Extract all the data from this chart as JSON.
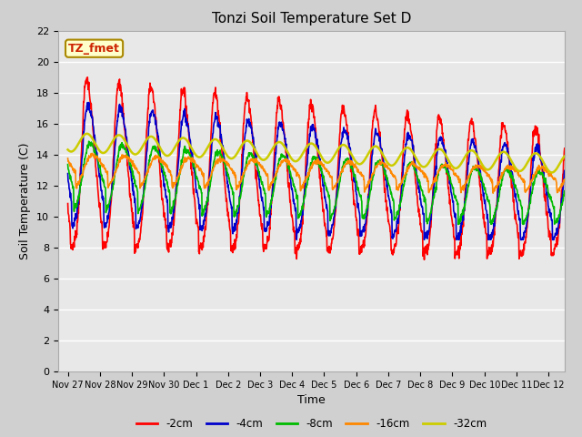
{
  "title": "Tonzi Soil Temperature Set D",
  "xlabel": "Time",
  "ylabel": "Soil Temperature (C)",
  "ylim": [
    0,
    22
  ],
  "yticks": [
    0,
    2,
    4,
    6,
    8,
    10,
    12,
    14,
    16,
    18,
    20,
    22
  ],
  "fig_facecolor": "#d0d0d0",
  "ax_facecolor": "#e8e8e8",
  "annotation_text": "TZ_fmet",
  "annotation_color": "#cc2200",
  "annotation_bg": "#ffffcc",
  "annotation_border": "#aa8800",
  "line_colors": {
    "-2cm": "#ff0000",
    "-4cm": "#0000cc",
    "-8cm": "#00bb00",
    "-16cm": "#ff8800",
    "-32cm": "#cccc00"
  },
  "line_widths": {
    "-2cm": 1.2,
    "-4cm": 1.2,
    "-8cm": 1.2,
    "-16cm": 1.2,
    "-32cm": 1.8
  },
  "tick_labels": [
    "Nov 27",
    "Nov 28",
    "Nov 29",
    "Nov 30",
    "Dec 1",
    "Dec 2",
    "Dec 3",
    "Dec 4",
    "Dec 5",
    "Dec 6",
    "Dec 7",
    "Dec 8",
    "Dec 9",
    "Dec 10",
    "Dec 11",
    "Dec 12"
  ],
  "tick_positions": [
    0,
    1,
    2,
    3,
    4,
    5,
    6,
    7,
    8,
    9,
    10,
    11,
    12,
    13,
    14,
    15
  ]
}
